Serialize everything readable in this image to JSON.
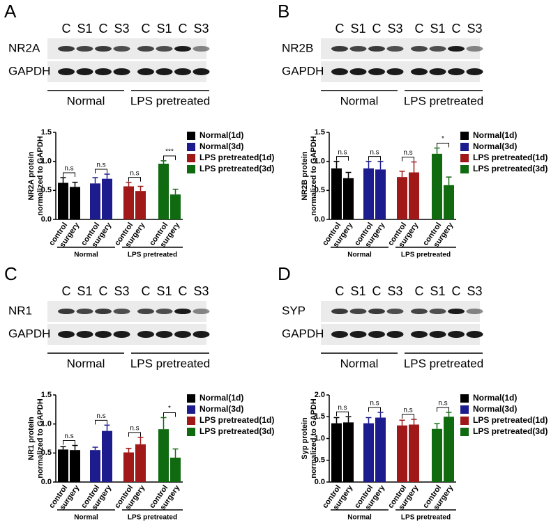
{
  "chart_data": [
    {
      "type": "bar",
      "ylabel": [
        "NR2A protein",
        "normalized to GAPDH"
      ],
      "categories": [
        "control",
        "surgery"
      ],
      "groups": [
        "Normal",
        "LPS pretreated"
      ],
      "ylim": [
        0,
        1.5
      ],
      "yticks": [
        {
          "value": 0,
          "label": "0.0"
        },
        {
          "value": 0.5,
          "label": "0.5"
        },
        {
          "value": 1.0,
          "label": "1.0"
        },
        {
          "value": 1.5,
          "label": "1.5"
        }
      ],
      "series": [
        {
          "name": "Normal(1d)",
          "color": "#000000",
          "values": [
            0.63,
            0.56
          ],
          "errors": [
            0.09,
            0.08
          ],
          "annotation": "n.s"
        },
        {
          "name": "Normal(3d)",
          "color": "#1c1c8e",
          "values": [
            0.62,
            0.7
          ],
          "errors": [
            0.1,
            0.08
          ],
          "annotation": "n.s"
        },
        {
          "name": "LPS pretreated(1d)",
          "color": "#a01818",
          "values": [
            0.57,
            0.49
          ],
          "errors": [
            0.07,
            0.08
          ],
          "annotation": "n.s"
        },
        {
          "name": "LPS pretreated(3d)",
          "color": "#106a10",
          "values": [
            0.96,
            0.43
          ],
          "errors": [
            0.05,
            0.09
          ],
          "annotation": "***"
        }
      ]
    },
    {
      "type": "bar",
      "ylabel": [
        "NR2B protein",
        "normalized to GAPDH"
      ],
      "categories": [
        "control",
        "surgery"
      ],
      "groups": [
        "Normal",
        "LPS pretreated"
      ],
      "ylim": [
        0,
        1.5
      ],
      "yticks": [
        {
          "value": 0,
          "label": "0.0"
        },
        {
          "value": 0.5,
          "label": "0.5"
        },
        {
          "value": 1.0,
          "label": "1.0"
        },
        {
          "value": 1.5,
          "label": "1.5"
        }
      ],
      "series": [
        {
          "name": "Normal(1d)",
          "color": "#000000",
          "values": [
            0.88,
            0.71
          ],
          "errors": [
            0.12,
            0.1
          ],
          "annotation": "n.s"
        },
        {
          "name": "Normal(3d)",
          "color": "#1c1c8e",
          "values": [
            0.88,
            0.86
          ],
          "errors": [
            0.12,
            0.14
          ],
          "annotation": "n.s"
        },
        {
          "name": "LPS pretreated(1d)",
          "color": "#a01818",
          "values": [
            0.73,
            0.81
          ],
          "errors": [
            0.1,
            0.18
          ],
          "annotation": "n.s"
        },
        {
          "name": "LPS pretreated(3d)",
          "color": "#106a10",
          "values": [
            1.13,
            0.59
          ],
          "errors": [
            0.1,
            0.14
          ],
          "annotation": "*"
        }
      ]
    },
    {
      "type": "bar",
      "ylabel": [
        "NR1 protein",
        "normalized to GAPDH"
      ],
      "categories": [
        "control",
        "surgery"
      ],
      "groups": [
        "Normal",
        "LPS pretreated"
      ],
      "ylim": [
        0,
        1.5
      ],
      "yticks": [
        {
          "value": 0,
          "label": "0.0"
        },
        {
          "value": 0.5,
          "label": "0.5"
        },
        {
          "value": 1.0,
          "label": "1.0"
        },
        {
          "value": 1.5,
          "label": "1.5"
        }
      ],
      "series": [
        {
          "name": "Normal(1d)",
          "color": "#000000",
          "values": [
            0.56,
            0.55
          ],
          "errors": [
            0.05,
            0.08
          ],
          "annotation": "n.s"
        },
        {
          "name": "Normal(3d)",
          "color": "#1c1c8e",
          "values": [
            0.55,
            0.88
          ],
          "errors": [
            0.05,
            0.1
          ],
          "annotation": "n.s"
        },
        {
          "name": "LPS pretreated(1d)",
          "color": "#a01818",
          "values": [
            0.51,
            0.65
          ],
          "errors": [
            0.07,
            0.12
          ],
          "annotation": "n.s"
        },
        {
          "name": "LPS pretreated(3d)",
          "color": "#106a10",
          "values": [
            0.91,
            0.42
          ],
          "errors": [
            0.2,
            0.15
          ],
          "annotation": "*"
        }
      ]
    },
    {
      "type": "bar",
      "ylabel": [
        "Syp protein",
        "normalized to GAPDH"
      ],
      "categories": [
        "control",
        "surgery"
      ],
      "groups": [
        "Normal",
        "LPS pretreated"
      ],
      "ylim": [
        0,
        2.0
      ],
      "yticks": [
        {
          "value": 0,
          "label": "0.0"
        },
        {
          "value": 0.5,
          "label": "0.5"
        },
        {
          "value": 1.0,
          "label": "1.0"
        },
        {
          "value": 1.5,
          "label": "1.5"
        },
        {
          "value": 2.0,
          "label": "2.0"
        }
      ],
      "series": [
        {
          "name": "Normal(1d)",
          "color": "#000000",
          "values": [
            1.35,
            1.37
          ],
          "errors": [
            0.13,
            0.13
          ],
          "annotation": "n.s"
        },
        {
          "name": "Normal(3d)",
          "color": "#1c1c8e",
          "values": [
            1.35,
            1.48
          ],
          "errors": [
            0.13,
            0.12
          ],
          "annotation": "n.s"
        },
        {
          "name": "LPS pretreated(1d)",
          "color": "#a01818",
          "values": [
            1.3,
            1.32
          ],
          "errors": [
            0.12,
            0.12
          ],
          "annotation": "n.s"
        },
        {
          "name": "LPS pretreated(3d)",
          "color": "#106a10",
          "values": [
            1.22,
            1.5
          ],
          "errors": [
            0.12,
            0.1
          ],
          "annotation": "n.s"
        }
      ]
    }
  ],
  "blots": [
    {
      "letter": "A",
      "lanes": [
        "C",
        "S1",
        "C",
        "S3",
        "C",
        "S1",
        "C",
        "S3"
      ],
      "rows": [
        "NR2A",
        "GAPDH"
      ],
      "groups": [
        "Normal",
        "LPS pretreated"
      ]
    },
    {
      "letter": "B",
      "lanes": [
        "C",
        "S1",
        "C",
        "S3",
        "C",
        "S1",
        "C",
        "S3"
      ],
      "rows": [
        "NR2B",
        "GAPDH"
      ],
      "groups": [
        "Normal",
        "LPS pretreated"
      ]
    },
    {
      "letter": "C",
      "lanes": [
        "C",
        "S1",
        "C",
        "S3",
        "C",
        "S1",
        "C",
        "S3"
      ],
      "rows": [
        "NR1",
        "GAPDH"
      ],
      "groups": [
        "Normal",
        "LPS pretreated"
      ]
    },
    {
      "letter": "D",
      "lanes": [
        "C",
        "S1",
        "C",
        "S3",
        "C",
        "S1",
        "C",
        "S3"
      ],
      "rows": [
        "SYP",
        "GAPDH"
      ],
      "groups": [
        "Normal",
        "LPS pretreated"
      ]
    }
  ]
}
